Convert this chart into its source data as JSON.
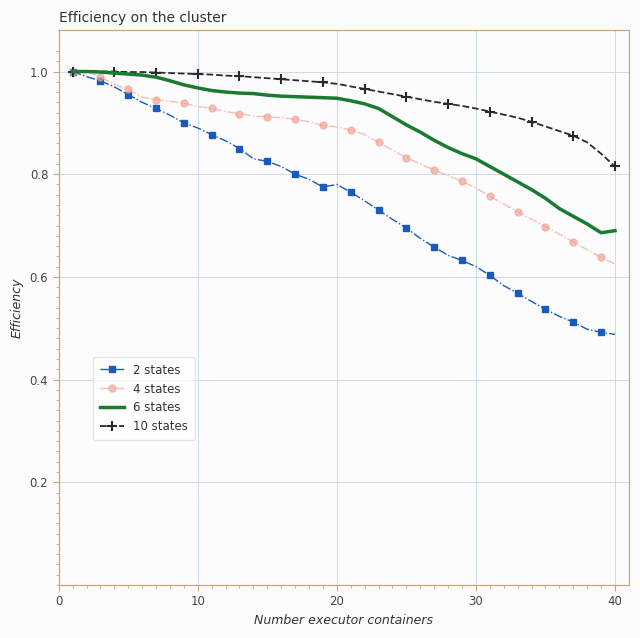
{
  "title": "Efficiency on the cluster",
  "xlabel": "Number executor containers",
  "ylabel": "Efficiency",
  "xlim": [
    0,
    41
  ],
  "ylim": [
    0.0,
    1.08
  ],
  "background_color": "#fdfcfc",
  "plot_bg_color": "#fdfcfc",
  "grid_color": "#d0d8ee",
  "spine_color": "#c8a878",
  "series": {
    "2_states": {
      "label": "2 states",
      "color": "#1a5abf",
      "linestyle": "-.",
      "marker": "s",
      "markevery": 2,
      "markersize": 5,
      "linewidth": 1.0,
      "x": [
        1,
        2,
        3,
        4,
        5,
        6,
        7,
        8,
        9,
        10,
        11,
        12,
        13,
        14,
        15,
        16,
        17,
        18,
        19,
        20,
        21,
        22,
        23,
        24,
        25,
        26,
        27,
        28,
        29,
        30,
        31,
        32,
        33,
        34,
        35,
        36,
        37,
        38,
        39,
        40
      ],
      "y": [
        1.0,
        0.99,
        0.982,
        0.97,
        0.955,
        0.94,
        0.928,
        0.915,
        0.9,
        0.89,
        0.877,
        0.865,
        0.85,
        0.83,
        0.825,
        0.815,
        0.8,
        0.79,
        0.775,
        0.78,
        0.765,
        0.748,
        0.73,
        0.712,
        0.695,
        0.675,
        0.658,
        0.642,
        0.632,
        0.62,
        0.603,
        0.583,
        0.568,
        0.552,
        0.537,
        0.523,
        0.512,
        0.498,
        0.492,
        0.488
      ]
    },
    "4_states": {
      "label": "4 states",
      "color": "#f0a090",
      "linestyle": "-.",
      "marker": "o",
      "markevery": 2,
      "markersize": 5,
      "linewidth": 1.0,
      "alpha": 0.65,
      "x": [
        1,
        2,
        3,
        4,
        5,
        6,
        7,
        8,
        9,
        10,
        11,
        12,
        13,
        14,
        15,
        16,
        17,
        18,
        19,
        20,
        21,
        22,
        23,
        24,
        25,
        26,
        27,
        28,
        29,
        30,
        31,
        32,
        33,
        34,
        35,
        36,
        37,
        38,
        39,
        40
      ],
      "y": [
        1.0,
        1.0,
        0.99,
        0.975,
        0.965,
        0.95,
        0.945,
        0.942,
        0.938,
        0.932,
        0.928,
        0.922,
        0.918,
        0.913,
        0.912,
        0.91,
        0.907,
        0.902,
        0.895,
        0.892,
        0.886,
        0.877,
        0.862,
        0.847,
        0.832,
        0.82,
        0.808,
        0.797,
        0.786,
        0.773,
        0.757,
        0.742,
        0.727,
        0.712,
        0.698,
        0.683,
        0.668,
        0.653,
        0.638,
        0.625
      ]
    },
    "6_states": {
      "label": "6 states",
      "color": "#1a7a30",
      "linestyle": "-",
      "marker": null,
      "markevery": 1,
      "markersize": 0,
      "linewidth": 2.5,
      "alpha": 1.0,
      "x": [
        1,
        2,
        3,
        4,
        5,
        6,
        7,
        8,
        9,
        10,
        11,
        12,
        13,
        14,
        15,
        16,
        17,
        18,
        19,
        20,
        21,
        22,
        23,
        24,
        25,
        26,
        27,
        28,
        29,
        30,
        31,
        32,
        33,
        34,
        35,
        36,
        37,
        38,
        39,
        40
      ],
      "y": [
        1.0,
        1.0,
        0.999,
        0.997,
        0.995,
        0.993,
        0.989,
        0.982,
        0.974,
        0.968,
        0.963,
        0.96,
        0.958,
        0.957,
        0.954,
        0.952,
        0.951,
        0.95,
        0.949,
        0.948,
        0.943,
        0.937,
        0.928,
        0.912,
        0.896,
        0.882,
        0.866,
        0.852,
        0.84,
        0.83,
        0.815,
        0.8,
        0.785,
        0.77,
        0.753,
        0.733,
        0.718,
        0.703,
        0.686,
        0.69
      ]
    },
    "10_states": {
      "label": "10 states",
      "color": "#2a2a2a",
      "linestyle": "--",
      "marker": "+",
      "markevery": 3,
      "markersize": 7,
      "linewidth": 1.3,
      "alpha": 1.0,
      "x": [
        1,
        2,
        3,
        4,
        5,
        6,
        7,
        8,
        9,
        10,
        11,
        12,
        13,
        14,
        15,
        16,
        17,
        18,
        19,
        20,
        21,
        22,
        23,
        24,
        25,
        26,
        27,
        28,
        29,
        30,
        31,
        32,
        33,
        34,
        35,
        36,
        37,
        38,
        39,
        40
      ],
      "y": [
        1.0,
        1.0,
        1.0,
        1.0,
        0.999,
        0.999,
        0.998,
        0.997,
        0.996,
        0.995,
        0.994,
        0.992,
        0.991,
        0.989,
        0.987,
        0.985,
        0.983,
        0.981,
        0.979,
        0.976,
        0.971,
        0.966,
        0.961,
        0.956,
        0.951,
        0.946,
        0.941,
        0.937,
        0.933,
        0.928,
        0.922,
        0.916,
        0.91,
        0.902,
        0.893,
        0.884,
        0.875,
        0.862,
        0.84,
        0.815
      ]
    }
  },
  "yticks": [
    0.2,
    0.4,
    0.6,
    0.8,
    1.0
  ],
  "xticks": [
    0,
    10,
    20,
    30,
    40
  ],
  "minor_xticks": [
    1,
    2,
    3,
    4,
    5,
    6,
    7,
    8,
    9,
    11,
    12,
    13,
    14,
    15,
    16,
    17,
    18,
    19,
    21,
    22,
    23,
    24,
    25,
    26,
    27,
    28,
    29,
    31,
    32,
    33,
    34,
    35,
    36,
    37,
    38,
    39
  ],
  "title_fontsize": 10,
  "label_fontsize": 9,
  "tick_fontsize": 8.5,
  "legend_fontsize": 8.5
}
